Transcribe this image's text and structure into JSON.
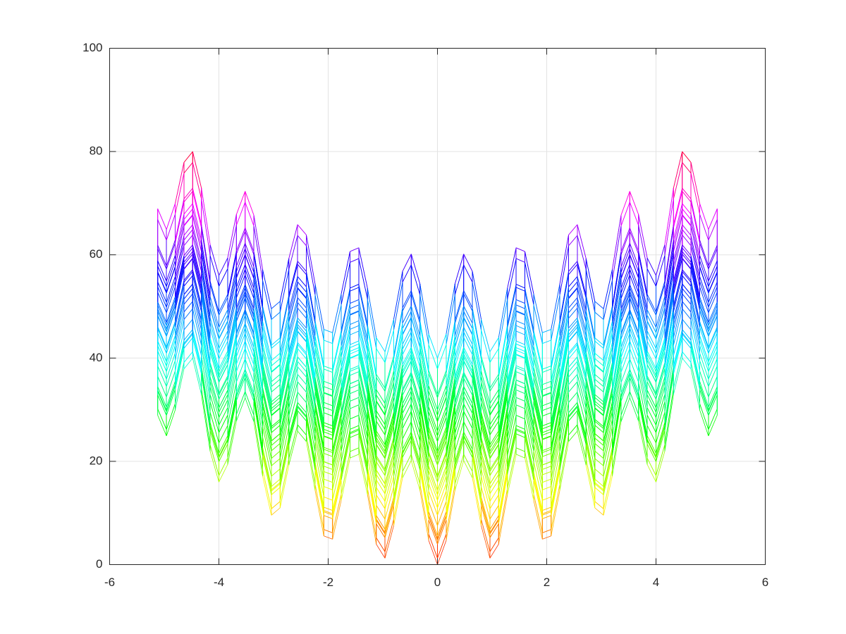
{
  "chart_data": {
    "type": "mesh",
    "x": [
      -5.12,
      -4.96,
      -4.8,
      -4.64,
      -4.48,
      -4.32,
      -4.16,
      -4,
      -3.84,
      -3.68,
      -3.52,
      -3.36,
      -3.2,
      -3.04,
      -2.88,
      -2.72,
      -2.56,
      -2.4,
      -2.24,
      -2.08,
      -1.92,
      -1.76,
      -1.6,
      -1.44,
      -1.28,
      -1.12,
      -0.96,
      -0.8,
      -0.64,
      -0.48,
      -0.32,
      -0.16,
      0,
      0.16,
      0.32,
      0.48,
      0.64,
      0.8,
      0.96,
      1.12,
      1.28,
      1.44,
      1.6,
      1.76,
      1.92,
      2.08,
      2.24,
      2.4,
      2.56,
      2.72,
      2.88,
      3.04,
      3.2,
      3.36,
      3.52,
      3.68,
      3.84,
      4,
      4.16,
      4.32,
      4.48,
      4.64,
      4.8,
      4.96,
      5.12
    ],
    "x_term": [
      28.92,
      24.92,
      29.95,
      37.9,
      39.99,
      32.92,
      21.95,
      16,
      19.39,
      27.8,
      32.31,
      27.66,
      17.15,
      9.56,
      11,
      19.27,
      25.85,
      23.85,
      14.39,
      5.56,
      4.92,
      12.47,
      20.65,
      21.37,
      13.51,
      3.96,
      1.24,
      7.55,
      16.78,
      20.15,
      14.36,
      4.67,
      0,
      4.67,
      14.36,
      20.15,
      16.78,
      7.55,
      1.24,
      3.96,
      13.51,
      21.37,
      20.65,
      12.47,
      4.92,
      5.56,
      14.39,
      23.85,
      25.85,
      19.27,
      11,
      9.56,
      17.15,
      27.66,
      32.31,
      27.8,
      19.39,
      16,
      21.95,
      32.92,
      39.99,
      37.9,
      29.95,
      24.92,
      28.92
    ],
    "y_term": [
      28.92,
      24.92,
      29.95,
      37.9,
      39.99,
      32.92,
      21.95,
      16,
      19.39,
      27.8,
      32.31,
      27.66,
      17.15,
      9.56,
      11,
      19.27,
      25.85,
      23.85,
      14.39,
      5.56,
      4.92,
      12.47,
      20.65,
      21.37,
      13.51,
      3.96,
      1.24,
      7.55,
      16.78,
      20.15,
      14.36,
      4.67,
      0,
      4.67,
      14.36,
      20.15,
      16.78,
      7.55,
      1.24,
      3.96,
      13.51,
      21.37,
      20.65,
      12.47,
      4.92,
      5.56,
      14.39,
      23.85,
      25.85,
      19.27,
      11,
      9.56,
      17.15,
      27.66,
      32.31,
      27.8,
      19.39,
      16,
      21.95,
      32.92,
      39.99,
      37.9,
      29.95,
      24.92,
      28.92
    ],
    "xlim": [
      -6,
      6
    ],
    "xticks": [
      -6,
      -4,
      -2,
      0,
      2,
      4,
      6
    ],
    "ylim": [
      0,
      100
    ],
    "yticks": [
      0,
      20,
      40,
      60,
      80,
      100
    ],
    "grid": true,
    "colormap": "hsv"
  }
}
